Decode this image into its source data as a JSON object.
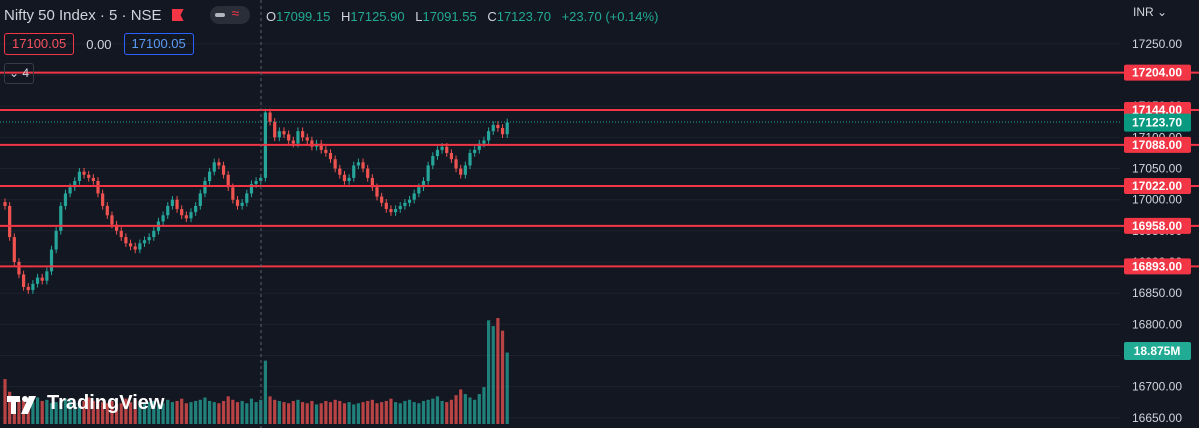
{
  "header": {
    "symbol": "Nifty 50 Index · 5 · NSE",
    "ohlc": {
      "o_label": "O",
      "o": "17099.15",
      "h_label": "H",
      "h": "17125.90",
      "l_label": "L",
      "l": "17091.55",
      "c_label": "C",
      "c": "17123.70",
      "change": "+23.70 (+0.14%)"
    },
    "sell_price": "17100.05",
    "spread": "0.00",
    "buy_price": "17100.05",
    "indicators_collapse": "4"
  },
  "currency_label": "INR",
  "logo_text": "TradingView",
  "colors": {
    "background": "#131722",
    "up": "#26a69a",
    "down": "#ef5350",
    "level_line": "#f23645",
    "grid": "#1e222d"
  },
  "chart_data": {
    "type": "candlestick",
    "ylim": [
      16640,
      17290
    ],
    "y_ticks": [
      16650,
      16700,
      16750,
      16800,
      16850,
      16900,
      16950,
      17000,
      17050,
      17100,
      17150,
      17200,
      17250
    ],
    "horizontal_levels": [
      "17204.00",
      "17144.00",
      "17088.00",
      "17022.00",
      "16958.00",
      "16893.00"
    ],
    "last_price_label": "17123.70",
    "volume_label": "18.875M",
    "closes": [
      16990,
      16940,
      16900,
      16880,
      16860,
      16855,
      16865,
      16875,
      16870,
      16885,
      16920,
      16950,
      16990,
      17010,
      17020,
      17030,
      17045,
      17040,
      17035,
      17030,
      17010,
      16990,
      16975,
      16960,
      16950,
      16940,
      16930,
      16925,
      16920,
      16930,
      16935,
      16940,
      16950,
      16965,
      16975,
      16990,
      17000,
      16985,
      16975,
      16970,
      16980,
      16990,
      17010,
      17030,
      17045,
      17060,
      17055,
      17040,
      17020,
      17000,
      16990,
      16995,
      17010,
      17025,
      17030,
      17035,
      17140,
      17125,
      17100,
      17110,
      17105,
      17095,
      17090,
      17110,
      17100,
      17095,
      17085,
      17090,
      17080,
      17075,
      17065,
      17050,
      17040,
      17030,
      17035,
      17055,
      17060,
      17050,
      17035,
      17020,
      17005,
      16995,
      16985,
      16980,
      16985,
      16990,
      16995,
      17000,
      17010,
      17020,
      17030,
      17055,
      17070,
      17080,
      17085,
      17075,
      17065,
      17050,
      17040,
      17055,
      17075,
      17080,
      17090,
      17095,
      17110,
      17120,
      17115,
      17105,
      17124
    ],
    "volumes_millions": [
      3.9,
      2.8,
      2.4,
      2.1,
      2.0,
      2.2,
      1.9,
      2.3,
      2.0,
      2.1,
      1.8,
      1.9,
      2.0,
      2.2,
      2.1,
      1.8,
      1.9,
      2.0,
      2.3,
      2.0,
      2.1,
      1.9,
      1.8,
      2.0,
      1.7,
      1.8,
      2.2,
      1.9,
      2.1,
      2.0,
      1.8,
      1.9,
      2.0,
      1.7,
      1.8,
      2.1,
      1.9,
      2.0,
      2.2,
      1.8,
      1.9,
      2.0,
      2.1,
      2.3,
      2.0,
      1.9,
      1.8,
      2.0,
      2.4,
      2.1,
      1.9,
      2.0,
      1.8,
      2.2,
      1.9,
      2.1,
      5.5,
      2.4,
      2.1,
      2.0,
      1.9,
      1.8,
      2.0,
      2.1,
      1.9,
      1.8,
      2.0,
      1.7,
      1.8,
      2.0,
      1.9,
      2.1,
      2.0,
      1.8,
      1.9,
      1.7,
      1.8,
      1.9,
      2.0,
      2.1,
      1.8,
      1.9,
      2.0,
      2.2,
      1.9,
      1.8,
      2.0,
      2.1,
      1.9,
      1.8,
      2.0,
      2.1,
      2.2,
      2.4,
      2.0,
      1.9,
      2.1,
      2.5,
      3.0,
      2.6,
      2.3,
      2.1,
      2.6,
      3.2,
      9.0,
      8.5,
      9.2,
      8.1,
      6.2
    ]
  }
}
